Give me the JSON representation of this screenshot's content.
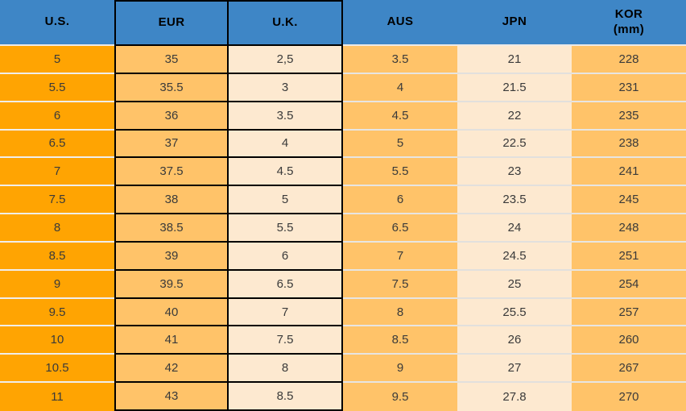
{
  "table": {
    "headers": [
      {
        "id": "us",
        "label": "U.S."
      },
      {
        "id": "eur",
        "label": "EUR"
      },
      {
        "id": "uk",
        "label": "U.K."
      },
      {
        "id": "aus",
        "label": "AUS"
      },
      {
        "id": "jpn",
        "label": "JPN"
      },
      {
        "id": "kor",
        "label": "KOR",
        "sublabel": "(mm)"
      }
    ],
    "rows": [
      [
        "5",
        "35",
        "2,5",
        "3.5",
        "21",
        "228"
      ],
      [
        "5.5",
        "35.5",
        "3",
        "4",
        "21.5",
        "231"
      ],
      [
        "6",
        "36",
        "3.5",
        "4.5",
        "22",
        "235"
      ],
      [
        "6.5",
        "37",
        "4",
        "5",
        "22.5",
        "238"
      ],
      [
        "7",
        "37.5",
        "4.5",
        "5.5",
        "23",
        "241"
      ],
      [
        "7.5",
        "38",
        "5",
        "6",
        "23.5",
        "245"
      ],
      [
        "8",
        "38.5",
        "5.5",
        "6.5",
        "24",
        "248"
      ],
      [
        "8.5",
        "39",
        "6",
        "7",
        "24.5",
        "251"
      ],
      [
        "9",
        "39.5",
        "6.5",
        "7.5",
        "25",
        "254"
      ],
      [
        "9.5",
        "40",
        "7",
        "8",
        "25.5",
        "257"
      ],
      [
        "10",
        "41",
        "7.5",
        "8.5",
        "26",
        "260"
      ],
      [
        "10.5",
        "42",
        "8",
        "9",
        "27",
        "267"
      ],
      [
        "11",
        "43",
        "8.5",
        "9.5",
        "27.8",
        "270"
      ]
    ]
  },
  "colors": {
    "header_background": "#3E86C6",
    "header_text": "#000000",
    "us_column_orange": "#FFA402",
    "medium_orange": "#FFC369",
    "cream": "#FDE9D0",
    "cell_text": "#3A3A3A",
    "dark_border": "#000000",
    "light_separator": "#ECEAE7"
  },
  "chart_data": {
    "type": "table",
    "columns": [
      "U.S.",
      "EUR",
      "U.K.",
      "AUS",
      "JPN",
      "KOR (mm)"
    ],
    "rows": [
      [
        "5",
        "35",
        "2,5",
        "3.5",
        "21",
        "228"
      ],
      [
        "5.5",
        "35.5",
        "3",
        "4",
        "21.5",
        "231"
      ],
      [
        "6",
        "36",
        "3.5",
        "4.5",
        "22",
        "235"
      ],
      [
        "6.5",
        "37",
        "4",
        "5",
        "22.5",
        "238"
      ],
      [
        "7",
        "37.5",
        "4.5",
        "5.5",
        "23",
        "241"
      ],
      [
        "7.5",
        "38",
        "5",
        "6",
        "23.5",
        "245"
      ],
      [
        "8",
        "38.5",
        "5.5",
        "6.5",
        "24",
        "248"
      ],
      [
        "8.5",
        "39",
        "6",
        "7",
        "24.5",
        "251"
      ],
      [
        "9",
        "39.5",
        "6.5",
        "7.5",
        "25",
        "254"
      ],
      [
        "9.5",
        "40",
        "7",
        "8",
        "25.5",
        "257"
      ],
      [
        "10",
        "41",
        "7.5",
        "8.5",
        "26",
        "260"
      ],
      [
        "10.5",
        "42",
        "8",
        "9",
        "27",
        "267"
      ],
      [
        "11",
        "43",
        "8.5",
        "9.5",
        "27.8",
        "270"
      ]
    ]
  }
}
